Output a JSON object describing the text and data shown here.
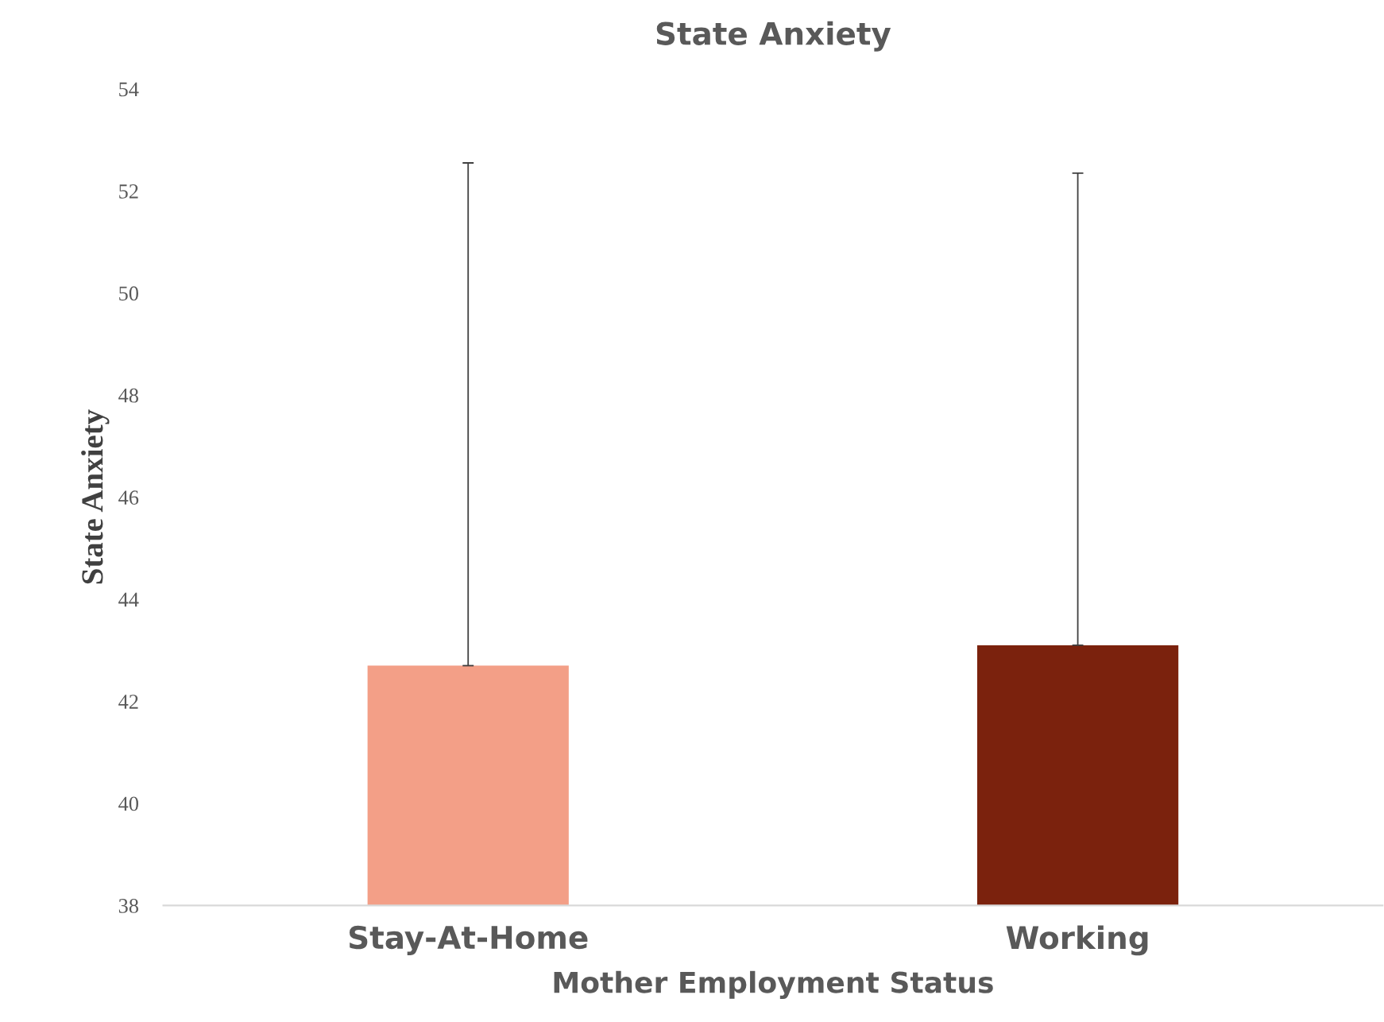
{
  "chart_data": {
    "type": "bar",
    "title": "State Anxiety",
    "xlabel": "Mother Employment Status",
    "ylabel": "State Anxiety",
    "categories": [
      "Stay-At-Home",
      "Working"
    ],
    "values": [
      42.7,
      43.1
    ],
    "colors": [
      "#f39f87",
      "#7b220d"
    ],
    "errors": [
      [
        42.7,
        52.55
      ],
      [
        43.1,
        52.35
      ]
    ],
    "ylim": [
      38,
      54
    ],
    "yticks": [
      38,
      40,
      42,
      44,
      46,
      48,
      50,
      52,
      54
    ],
    "grid": false,
    "legend": false
  }
}
